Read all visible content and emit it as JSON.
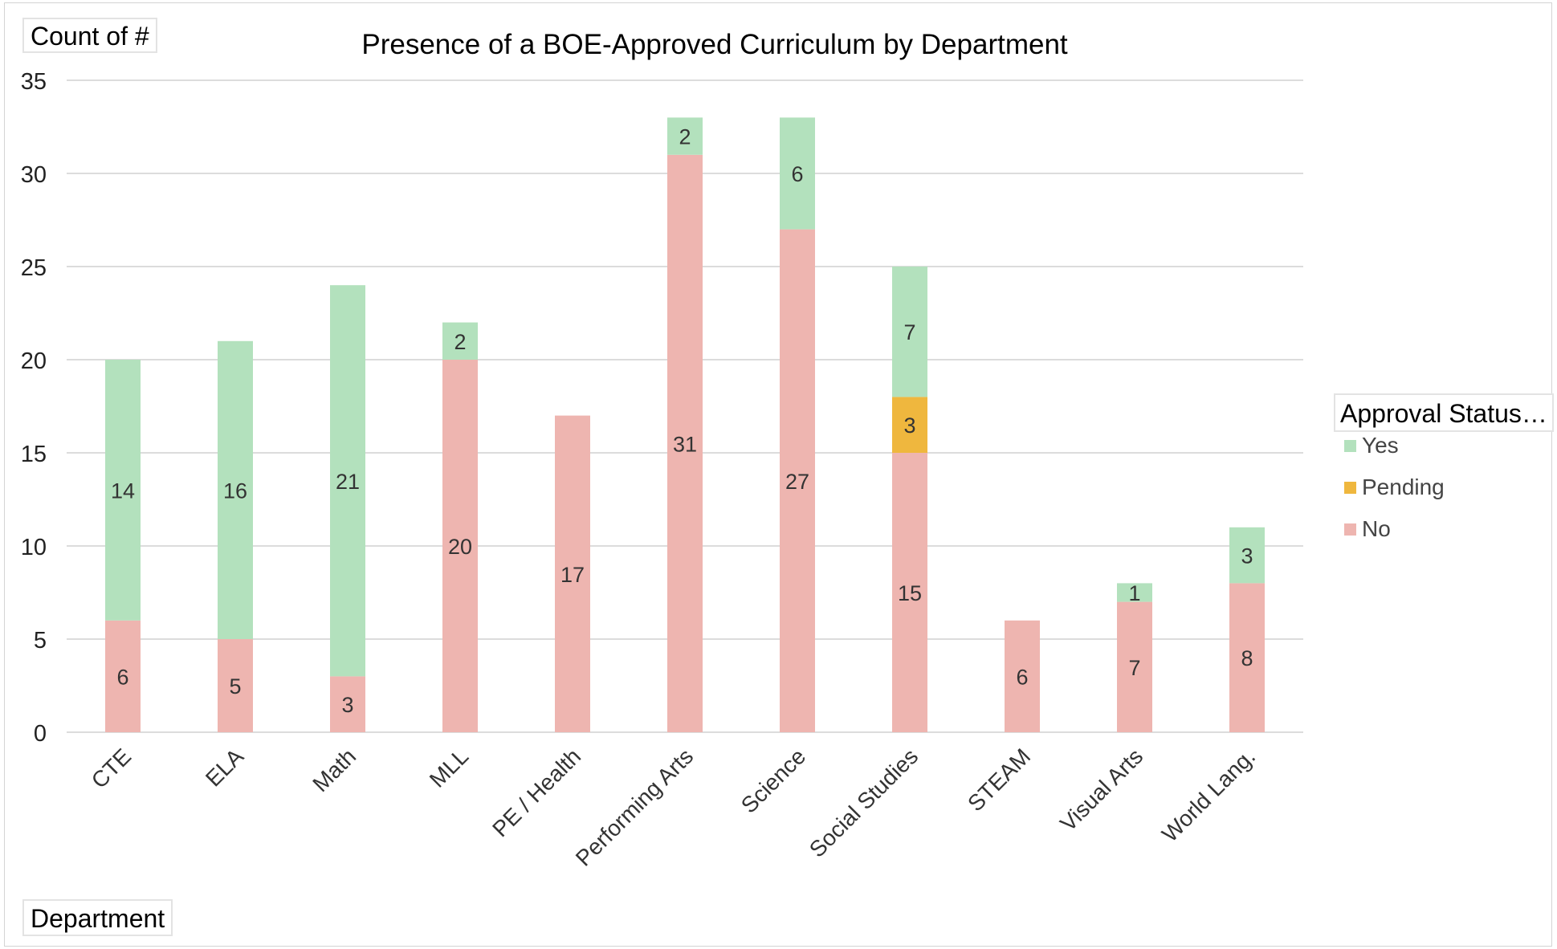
{
  "fields": {
    "value_field": "Count of #",
    "axis_field": "Department",
    "legend_field": "Approval Status…"
  },
  "colors": {
    "Yes": "#b3e1bd",
    "Pending": "#efb73e",
    "No": "#eeb5b0",
    "grid": "#dcdcdc"
  },
  "chart_data": {
    "type": "bar",
    "stacked": true,
    "title": "Presence of a BOE-Approved Curriculum by Department",
    "xlabel": "Department",
    "ylabel": "Count of #",
    "ylim": [
      0,
      35
    ],
    "yticks": [
      0,
      5,
      10,
      15,
      20,
      25,
      30,
      35
    ],
    "grid": true,
    "legend_position": "right",
    "categories": [
      "CTE",
      "ELA",
      "Math",
      "MLL",
      "PE / Health",
      "Performing Arts",
      "Science",
      "Social Studies",
      "STEAM",
      "Visual Arts",
      "World Lang."
    ],
    "series": [
      {
        "name": "No",
        "values": [
          6,
          5,
          3,
          20,
          17,
          31,
          27,
          15,
          6,
          7,
          8
        ]
      },
      {
        "name": "Pending",
        "values": [
          0,
          0,
          0,
          0,
          0,
          0,
          0,
          3,
          0,
          0,
          0
        ]
      },
      {
        "name": "Yes",
        "values": [
          14,
          16,
          21,
          2,
          0,
          2,
          6,
          7,
          0,
          1,
          3
        ]
      }
    ],
    "legend": [
      "Yes",
      "Pending",
      "No"
    ]
  }
}
